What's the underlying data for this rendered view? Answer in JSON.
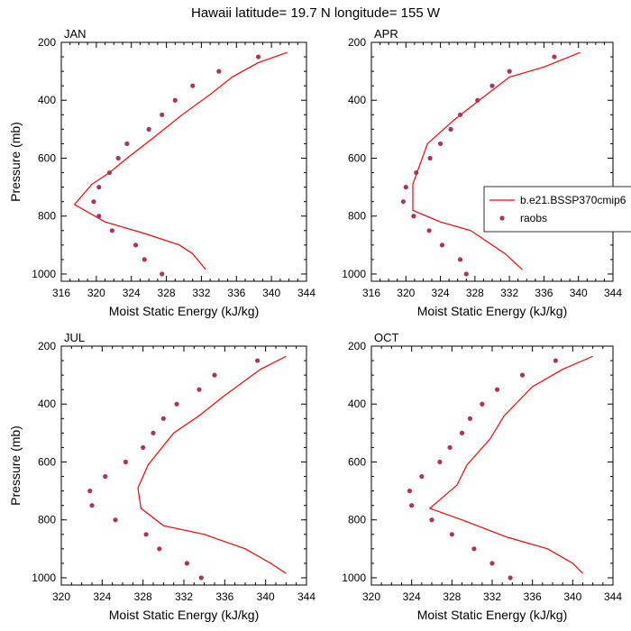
{
  "figure": {
    "title": "Hawaii  latitude= 19.7 N longitude= 155 W"
  },
  "legend": {
    "model_label": "b.e21.BSSP370cmip6",
    "obs_label": "raobs",
    "placement": "right of APR panel"
  },
  "colors": {
    "model_line": "#ff0000",
    "obs_marker": "#b03060"
  },
  "chart_data": [
    {
      "type": "line",
      "panel_label": "JAN",
      "xlabel": "Moist Static Energy (kJ/kg)",
      "ylabel": "Pressure (mb)",
      "xlim": [
        316,
        344
      ],
      "ylim": [
        200,
        1025
      ],
      "y_reversed": true,
      "x_ticks": [
        316,
        320,
        324,
        328,
        332,
        336,
        340,
        344
      ],
      "y_ticks": [
        200,
        400,
        600,
        800,
        1000
      ],
      "series": [
        {
          "points": [
            [
              341.8,
              235
            ],
            [
              338.5,
              270
            ],
            [
              335.5,
              320
            ],
            [
              333,
              380
            ],
            [
              329.8,
              450
            ],
            [
              326.5,
              530
            ],
            [
              323.5,
              600
            ],
            [
              321.5,
              650
            ],
            [
              319.5,
              690
            ],
            [
              317.5,
              760
            ],
            [
              321,
              820
            ],
            [
              325.5,
              860
            ],
            [
              329.5,
              900
            ],
            [
              331,
              930
            ],
            [
              332.5,
              985
            ]
          ]
        },
        {
          "points": [
            [
              338.5,
              250
            ],
            [
              334,
              300
            ],
            [
              331,
              350
            ],
            [
              329,
              400
            ],
            [
              327.5,
              450
            ],
            [
              326,
              500
            ],
            [
              323.5,
              550
            ],
            [
              322.5,
              600
            ],
            [
              321.5,
              650
            ],
            [
              320.3,
              700
            ],
            [
              319.7,
              750
            ],
            [
              320.3,
              800
            ],
            [
              321.8,
              850
            ],
            [
              324.5,
              900
            ],
            [
              325.5,
              950
            ],
            [
              327.5,
              1000
            ]
          ]
        }
      ]
    },
    {
      "type": "line",
      "panel_label": "APR",
      "xlabel": "Moist Static Energy (kJ/kg)",
      "ylabel": "",
      "xlim": [
        316,
        344
      ],
      "ylim": [
        200,
        1025
      ],
      "y_reversed": true,
      "x_ticks": [
        316,
        320,
        324,
        328,
        332,
        336,
        340,
        344
      ],
      "y_ticks": [
        200,
        400,
        600,
        800,
        1000
      ],
      "series": [
        {
          "points": [
            [
              340.2,
              235
            ],
            [
              336,
              285
            ],
            [
              332,
              320
            ],
            [
              328.5,
              400
            ],
            [
              325.5,
              470
            ],
            [
              322.5,
              550
            ],
            [
              320.8,
              690
            ],
            [
              320.8,
              780
            ],
            [
              324,
              820
            ],
            [
              327.5,
              850
            ],
            [
              330,
              900
            ],
            [
              331.5,
              930
            ],
            [
              333.5,
              985
            ]
          ]
        },
        {
          "points": [
            [
              337.2,
              250
            ],
            [
              332,
              300
            ],
            [
              330,
              350
            ],
            [
              328.3,
              400
            ],
            [
              326.3,
              450
            ],
            [
              325.2,
              500
            ],
            [
              324,
              550
            ],
            [
              322.8,
              600
            ],
            [
              321.2,
              650
            ],
            [
              320,
              700
            ],
            [
              319.7,
              750
            ],
            [
              320.9,
              800
            ],
            [
              322.7,
              850
            ],
            [
              324.2,
              900
            ],
            [
              326.3,
              950
            ],
            [
              327,
              1000
            ]
          ]
        }
      ]
    },
    {
      "type": "line",
      "panel_label": "JUL",
      "xlabel": "Moist Static Energy (kJ/kg)",
      "ylabel": "Pressure (mb)",
      "xlim": [
        320,
        344
      ],
      "ylim": [
        200,
        1025
      ],
      "y_reversed": true,
      "x_ticks": [
        320,
        324,
        328,
        332,
        336,
        340,
        344
      ],
      "y_ticks": [
        200,
        400,
        600,
        800,
        1000
      ],
      "series": [
        {
          "points": [
            [
              342,
              235
            ],
            [
              339.5,
              280
            ],
            [
              336,
              370
            ],
            [
              333.5,
              440
            ],
            [
              331,
              500
            ],
            [
              328.5,
              610
            ],
            [
              327.5,
              690
            ],
            [
              327.8,
              760
            ],
            [
              330,
              820
            ],
            [
              334,
              850
            ],
            [
              338,
              900
            ],
            [
              340.5,
              950
            ],
            [
              342,
              985
            ]
          ]
        },
        {
          "points": [
            [
              339.2,
              250
            ],
            [
              335,
              300
            ],
            [
              333.5,
              350
            ],
            [
              331.3,
              400
            ],
            [
              330,
              450
            ],
            [
              329,
              500
            ],
            [
              328,
              550
            ],
            [
              326.3,
              600
            ],
            [
              324.3,
              650
            ],
            [
              322.8,
              700
            ],
            [
              323,
              750
            ],
            [
              325.3,
              800
            ],
            [
              328.3,
              850
            ],
            [
              329.6,
              900
            ],
            [
              332.3,
              950
            ],
            [
              333.7,
              1000
            ]
          ]
        }
      ]
    },
    {
      "type": "line",
      "panel_label": "OCT",
      "xlabel": "Moist Static Energy (kJ/kg)",
      "ylabel": "",
      "xlim": [
        320,
        344
      ],
      "ylim": [
        200,
        1025
      ],
      "y_reversed": true,
      "x_ticks": [
        320,
        324,
        328,
        332,
        336,
        340,
        344
      ],
      "y_ticks": [
        200,
        400,
        600,
        800,
        1000
      ],
      "series": [
        {
          "points": [
            [
              342,
              235
            ],
            [
              339,
              280
            ],
            [
              336,
              340
            ],
            [
              333.2,
              440
            ],
            [
              331.8,
              520
            ],
            [
              329.5,
              610
            ],
            [
              328.5,
              680
            ],
            [
              325.8,
              760
            ],
            [
              329,
              800
            ],
            [
              333.5,
              860
            ],
            [
              337.5,
              900
            ],
            [
              340,
              950
            ],
            [
              341,
              985
            ]
          ]
        },
        {
          "points": [
            [
              338.3,
              250
            ],
            [
              335,
              300
            ],
            [
              332.5,
              350
            ],
            [
              331,
              400
            ],
            [
              329.8,
              450
            ],
            [
              329,
              500
            ],
            [
              327.8,
              550
            ],
            [
              326.8,
              600
            ],
            [
              325,
              650
            ],
            [
              323.8,
              700
            ],
            [
              324,
              750
            ],
            [
              326,
              800
            ],
            [
              328,
              850
            ],
            [
              330.2,
              900
            ],
            [
              332,
              950
            ],
            [
              333.8,
              1000
            ]
          ]
        }
      ]
    }
  ]
}
